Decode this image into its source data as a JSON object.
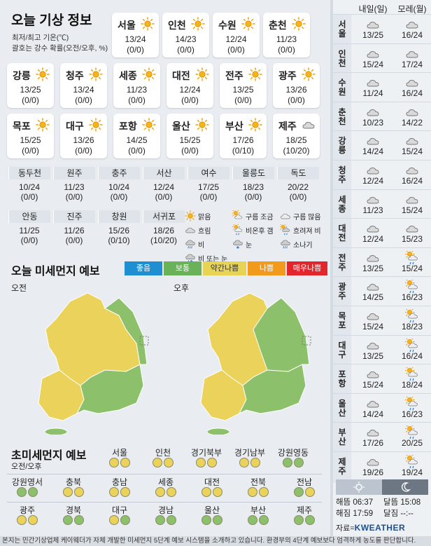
{
  "title": "오늘 기상 정보",
  "subtitle_line1": "최저/최고 기온(℃)",
  "subtitle_line2": "괄호는 강수 확률(오전/오후, %)",
  "today_cards": [
    {
      "city": "서울",
      "temp": "13/24",
      "prob": "(0/0)",
      "icon": "sunny"
    },
    {
      "city": "인천",
      "temp": "14/23",
      "prob": "(0/0)",
      "icon": "sunny"
    },
    {
      "city": "수원",
      "temp": "12/24",
      "prob": "(0/0)",
      "icon": "sunny"
    },
    {
      "city": "춘천",
      "temp": "11/23",
      "prob": "(0/0)",
      "icon": "sunny"
    },
    {
      "city": "강릉",
      "temp": "13/25",
      "prob": "(0/0)",
      "icon": "sunny"
    },
    {
      "city": "청주",
      "temp": "13/24",
      "prob": "(0/0)",
      "icon": "sunny"
    },
    {
      "city": "세종",
      "temp": "11/23",
      "prob": "(0/0)",
      "icon": "sunny"
    },
    {
      "city": "대전",
      "temp": "12/24",
      "prob": "(0/0)",
      "icon": "sunny"
    },
    {
      "city": "전주",
      "temp": "13/25",
      "prob": "(0/0)",
      "icon": "sunny"
    },
    {
      "city": "광주",
      "temp": "13/26",
      "prob": "(0/0)",
      "icon": "sunny"
    },
    {
      "city": "목포",
      "temp": "15/25",
      "prob": "(0/0)",
      "icon": "sunny"
    },
    {
      "city": "대구",
      "temp": "13/26",
      "prob": "(0/0)",
      "icon": "sunny"
    },
    {
      "city": "포항",
      "temp": "14/25",
      "prob": "(0/0)",
      "icon": "sunny"
    },
    {
      "city": "울산",
      "temp": "15/25",
      "prob": "(0/0)",
      "icon": "sunny"
    },
    {
      "city": "부산",
      "temp": "17/26",
      "prob": "(0/10)",
      "icon": "sunny"
    },
    {
      "city": "제주",
      "temp": "18/25",
      "prob": "(10/20)",
      "icon": "cloudy"
    }
  ],
  "strip_row1": [
    {
      "city": "동두천",
      "temp": "10/24",
      "prob": "(0/0)"
    },
    {
      "city": "원주",
      "temp": "11/23",
      "prob": "(0/0)"
    },
    {
      "city": "충주",
      "temp": "10/24",
      "prob": "(0/0)"
    },
    {
      "city": "서산",
      "temp": "12/24",
      "prob": "(0/0)"
    },
    {
      "city": "여수",
      "temp": "17/25",
      "prob": "(0/0)"
    },
    {
      "city": "울릉도",
      "temp": "18/23",
      "prob": "(0/0)"
    },
    {
      "city": "독도",
      "temp": "20/22",
      "prob": "(0/0)"
    }
  ],
  "strip_row2": [
    {
      "city": "안동",
      "temp": "11/25",
      "prob": "(0/0)"
    },
    {
      "city": "진주",
      "temp": "11/26",
      "prob": "(0/0)"
    },
    {
      "city": "창원",
      "temp": "15/26",
      "prob": "(0/10)"
    },
    {
      "city": "서귀포",
      "temp": "18/26",
      "prob": "(10/20)"
    }
  ],
  "weather_legend": [
    {
      "label": "맑음",
      "icon": "sunny"
    },
    {
      "label": "구름 조금",
      "icon": "partly-cloudy"
    },
    {
      "label": "구름 많음",
      "icon": "mostly-cloudy"
    },
    {
      "label": "흐림",
      "icon": "cloudy"
    },
    {
      "label": "비온후 갬",
      "icon": "rain-then-clear"
    },
    {
      "label": "흐려져 비",
      "icon": "cloud-then-rain"
    },
    {
      "label": "비",
      "icon": "rain"
    },
    {
      "label": "눈",
      "icon": "snow"
    },
    {
      "label": "소나기",
      "icon": "shower"
    },
    {
      "label": "비 또는 눈",
      "icon": "rain-or-snow"
    }
  ],
  "pm_title": "오늘 미세먼지 예보",
  "pm_scale": [
    {
      "label": "좋음",
      "color": "#1f8fd2"
    },
    {
      "label": "보통",
      "color": "#69b25a"
    },
    {
      "label": "약간나쁨",
      "color": "#e7d354"
    },
    {
      "label": "나쁨",
      "color": "#f19a1c"
    },
    {
      "label": "매우나쁨",
      "color": "#e2262b"
    }
  ],
  "map_am_label": "오전",
  "map_pm_label": "오후",
  "ultra_title": "초미세먼지 예보",
  "ultra_subtitle": "오전/오후",
  "ultra_regions": [
    {
      "name": "서울",
      "am": "y",
      "pm": "y"
    },
    {
      "name": "인천",
      "am": "y",
      "pm": "y"
    },
    {
      "name": "경기북부",
      "am": "y",
      "pm": "y"
    },
    {
      "name": "경기남부",
      "am": "y",
      "pm": "y"
    },
    {
      "name": "강원영동",
      "am": "g",
      "pm": "g"
    },
    {
      "name": "강원영서",
      "am": "g",
      "pm": "g"
    },
    {
      "name": "충북",
      "am": "y",
      "pm": "y"
    },
    {
      "name": "충남",
      "am": "y",
      "pm": "y"
    },
    {
      "name": "세종",
      "am": "y",
      "pm": "y"
    },
    {
      "name": "대전",
      "am": "y",
      "pm": "y"
    },
    {
      "name": "전북",
      "am": "y",
      "pm": "y"
    },
    {
      "name": "전남",
      "am": "g",
      "pm": "y"
    },
    {
      "name": "광주",
      "am": "y",
      "pm": "y"
    },
    {
      "name": "경북",
      "am": "g",
      "pm": "g"
    },
    {
      "name": "대구",
      "am": "y",
      "pm": "g"
    },
    {
      "name": "경남",
      "am": "g",
      "pm": "g"
    },
    {
      "name": "울산",
      "am": "g",
      "pm": "g"
    },
    {
      "name": "부산",
      "am": "g",
      "pm": "g"
    },
    {
      "name": "제주",
      "am": "g",
      "pm": "g"
    }
  ],
  "forecast_header_d1": "내일(일)",
  "forecast_header_d2": "모레(월)",
  "forecast": [
    {
      "city": "서울",
      "d1_temp": "13/25",
      "d1_icon": "cloudy",
      "d2_temp": "16/24",
      "d2_icon": "cloudy"
    },
    {
      "city": "인천",
      "d1_temp": "15/24",
      "d1_icon": "cloudy",
      "d2_temp": "17/24",
      "d2_icon": "cloudy"
    },
    {
      "city": "수원",
      "d1_temp": "11/24",
      "d1_icon": "cloudy",
      "d2_temp": "16/24",
      "d2_icon": "cloudy"
    },
    {
      "city": "춘천",
      "d1_temp": "10/23",
      "d1_icon": "cloudy",
      "d2_temp": "14/22",
      "d2_icon": "cloudy"
    },
    {
      "city": "강릉",
      "d1_temp": "14/24",
      "d1_icon": "cloudy",
      "d2_temp": "15/24",
      "d2_icon": "cloudy"
    },
    {
      "city": "청주",
      "d1_temp": "12/24",
      "d1_icon": "cloudy",
      "d2_temp": "16/24",
      "d2_icon": "cloudy"
    },
    {
      "city": "세종",
      "d1_temp": "11/23",
      "d1_icon": "cloudy",
      "d2_temp": "15/24",
      "d2_icon": "cloudy"
    },
    {
      "city": "대전",
      "d1_temp": "12/24",
      "d1_icon": "cloudy",
      "d2_temp": "15/23",
      "d2_icon": "cloudy"
    },
    {
      "city": "전주",
      "d1_temp": "13/25",
      "d1_icon": "cloudy",
      "d2_temp": "15/24",
      "d2_icon": "rain-then-clear"
    },
    {
      "city": "광주",
      "d1_temp": "14/25",
      "d1_icon": "cloudy",
      "d2_temp": "16/23",
      "d2_icon": "rain-then-clear"
    },
    {
      "city": "목포",
      "d1_temp": "15/24",
      "d1_icon": "cloudy",
      "d2_temp": "18/23",
      "d2_icon": "rain-then-clear"
    },
    {
      "city": "대구",
      "d1_temp": "13/25",
      "d1_icon": "cloudy",
      "d2_temp": "16/24",
      "d2_icon": "rain-then-clear"
    },
    {
      "city": "포항",
      "d1_temp": "15/24",
      "d1_icon": "cloudy",
      "d2_temp": "18/24",
      "d2_icon": "rain-then-clear"
    },
    {
      "city": "울산",
      "d1_temp": "14/24",
      "d1_icon": "cloudy",
      "d2_temp": "16/23",
      "d2_icon": "rain-then-clear"
    },
    {
      "city": "부산",
      "d1_temp": "17/26",
      "d1_icon": "cloudy",
      "d2_temp": "20/25",
      "d2_icon": "rain-then-clear"
    },
    {
      "city": "제주",
      "d1_temp": "19/26",
      "d1_icon": "cloudy",
      "d2_temp": "19/24",
      "d2_icon": "rain-then-clear"
    }
  ],
  "sunrise": "해뜸 06:37",
  "sunset": "해짐 17:59",
  "moonrise": "달뜸 15:08",
  "moonset": "달짐 --:--",
  "source_label": "자료=",
  "source_brand": "KWEATHER",
  "footer": "본지는 민간기상업체 케이웨더가 자체 개발한 미세먼지 5단계 예보 시스템을 소개하고 있습니다. 환경부의 4단계 예보보다 엄격하게 농도를 판단합니다."
}
